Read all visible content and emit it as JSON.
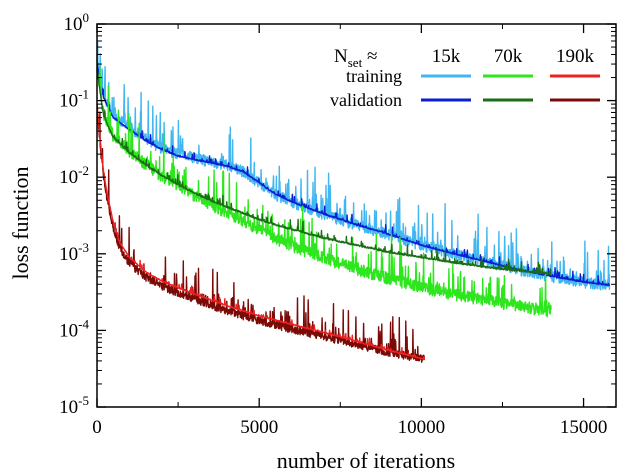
{
  "chart_data": {
    "type": "line",
    "xlabel": "number of iterations",
    "ylabel": "loss function",
    "xlim": [
      0,
      16000
    ],
    "ylim": [
      1e-05,
      1
    ],
    "yscale": "log",
    "grid": false,
    "legend_position": "top-right",
    "x_ticks": [
      {
        "value": 0,
        "label": "0"
      },
      {
        "value": 5000,
        "label": "5000"
      },
      {
        "value": 10000,
        "label": "10000"
      },
      {
        "value": 15000,
        "label": "15000"
      }
    ],
    "y_ticks": [
      {
        "value": 1,
        "base": "10",
        "exp": "0"
      },
      {
        "value": 0.1,
        "base": "10",
        "exp": "-1"
      },
      {
        "value": 0.01,
        "base": "10",
        "exp": "-2"
      },
      {
        "value": 0.001,
        "base": "10",
        "exp": "-3"
      },
      {
        "value": 0.0001,
        "base": "10",
        "exp": "-4"
      },
      {
        "value": 1e-05,
        "base": "10",
        "exp": "-5"
      }
    ],
    "legend": {
      "header_main": "N",
      "header_sub": "set",
      "header_approx": " ≈",
      "columns": [
        "15k",
        "70k",
        "190k"
      ],
      "rows": [
        "training",
        "validation"
      ]
    },
    "series": [
      {
        "group": "15k",
        "role": "training",
        "color": "#41b6f0",
        "noise": 0.55,
        "seed": 11,
        "x": [
          0,
          200,
          500,
          1000,
          1500,
          2000,
          2500,
          3000,
          3500,
          4000,
          4500,
          5000,
          5500,
          6000,
          7000,
          8000,
          9000,
          10000,
          11000,
          12000,
          13000,
          14000,
          15000,
          15800
        ],
        "y": [
          0.35,
          0.12,
          0.065,
          0.045,
          0.032,
          0.024,
          0.02,
          0.018,
          0.016,
          0.0145,
          0.012,
          0.0085,
          0.006,
          0.0048,
          0.0033,
          0.0024,
          0.0018,
          0.0013,
          0.001,
          0.00079,
          0.00062,
          0.00051,
          0.00043,
          0.00039
        ]
      },
      {
        "group": "15k",
        "role": "validation",
        "color": "#0a1ed2",
        "noise": 0.06,
        "seed": 12,
        "x": [
          0,
          200,
          500,
          1000,
          1500,
          2000,
          2500,
          3000,
          3500,
          4000,
          4500,
          5000,
          5500,
          6000,
          7000,
          8000,
          9000,
          10000,
          11000,
          12000,
          13000,
          14000,
          15000,
          15800
        ],
        "y": [
          0.3,
          0.11,
          0.06,
          0.042,
          0.03,
          0.023,
          0.019,
          0.017,
          0.0155,
          0.014,
          0.0118,
          0.0085,
          0.006,
          0.0048,
          0.0033,
          0.0024,
          0.0018,
          0.0013,
          0.001,
          0.00079,
          0.00062,
          0.00051,
          0.00043,
          0.00039
        ]
      },
      {
        "group": "70k",
        "role": "training",
        "color": "#2ee61e",
        "noise": 0.6,
        "seed": 21,
        "x": [
          0,
          200,
          500,
          1000,
          1500,
          2000,
          2500,
          3000,
          3500,
          4000,
          4500,
          5000,
          5500,
          6000,
          7000,
          8000,
          9000,
          10000,
          11000,
          12000,
          13000,
          14000
        ],
        "y": [
          0.28,
          0.07,
          0.035,
          0.022,
          0.015,
          0.0105,
          0.0078,
          0.0058,
          0.0045,
          0.0035,
          0.0027,
          0.0021,
          0.0016,
          0.0013,
          0.00088,
          0.00064,
          0.00048,
          0.00037,
          0.0003,
          0.00025,
          0.00021,
          0.00018
        ]
      },
      {
        "group": "70k",
        "role": "validation",
        "color": "#1a6e16",
        "noise": 0.08,
        "seed": 22,
        "x": [
          0,
          200,
          500,
          1000,
          1500,
          2000,
          2500,
          3000,
          3500,
          4000,
          4500,
          5000,
          5500,
          6000,
          7000,
          8000,
          9000,
          10000,
          11000,
          12000,
          13000,
          14000
        ],
        "y": [
          0.25,
          0.065,
          0.033,
          0.021,
          0.0145,
          0.0105,
          0.008,
          0.0062,
          0.005,
          0.0041,
          0.0034,
          0.0028,
          0.0024,
          0.0021,
          0.0016,
          0.0013,
          0.00105,
          0.0009,
          0.00077,
          0.00067,
          0.0006,
          0.00055
        ]
      },
      {
        "group": "190k",
        "role": "validation",
        "color": "#7a0a06",
        "noise": 0.4,
        "seed": 32,
        "x": [
          0,
          100,
          200,
          300,
          500,
          700,
          1000,
          1500,
          2000,
          2500,
          3000,
          4000,
          5000,
          6000,
          7000,
          8000,
          9000,
          10100
        ],
        "y": [
          0.08,
          0.025,
          0.01,
          0.0055,
          0.0022,
          0.0012,
          0.00075,
          0.0005,
          0.00038,
          0.00031,
          0.00026,
          0.00018,
          0.000135,
          0.000105,
          8.3e-05,
          6.5e-05,
          5.2e-05,
          4.2e-05
        ]
      },
      {
        "group": "190k",
        "role": "training",
        "color": "#f02020",
        "noise": 0.05,
        "seed": 31,
        "x": [
          0,
          100,
          200,
          300,
          500,
          700,
          1000,
          1500,
          2000,
          2500,
          3000,
          4000,
          5000,
          6000,
          7000,
          8000,
          9000,
          10100
        ],
        "y": [
          0.09,
          0.03,
          0.012,
          0.0065,
          0.0026,
          0.0014,
          0.0009,
          0.00058,
          0.00044,
          0.00036,
          0.0003,
          0.00021,
          0.000155,
          0.00012,
          9.4e-05,
          7.2e-05,
          5.5e-05,
          4.2e-05
        ]
      }
    ]
  }
}
